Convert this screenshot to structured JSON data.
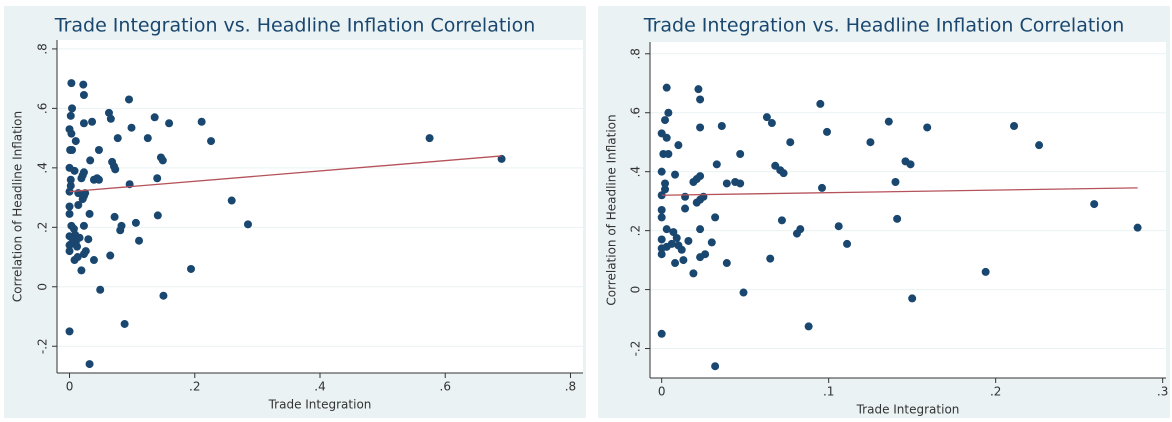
{
  "chart_data": [
    {
      "type": "scatter",
      "title": "Trade Integration vs. Headline Inflation Correlation",
      "x_label": "Trade Integration",
      "y_label": "Correlation of Headline Inflation",
      "color": "#1a476f",
      "fit_color": "#b5525a",
      "grid": true,
      "x": [
        0,
        0.003,
        0.004,
        0.002,
        0,
        0.003,
        0.001,
        0.004,
        0,
        0.002,
        0.002,
        0,
        0,
        0,
        0.003,
        0,
        0,
        0,
        0.003,
        0.006,
        0.007,
        0.009,
        0.008,
        0.01,
        0.008,
        0.01,
        0.012,
        0.013,
        0.014,
        0.014,
        0.016,
        0.019,
        0.021,
        0.023,
        0.022,
        0.023,
        0.023,
        0.021,
        0.023,
        0.025,
        0.023,
        0.023,
        0.026,
        0.019,
        0.03,
        0.032,
        0.033,
        0.036,
        0.039,
        0.039,
        0.047,
        0.044,
        0.047,
        0.049,
        0.032,
        0.063,
        0.066,
        0.068,
        0.071,
        0.073,
        0.077,
        0.072,
        0.065,
        0.081,
        0.083,
        0.088,
        0.095,
        0.099,
        0.096,
        0.106,
        0.111,
        0.125,
        0.136,
        0.14,
        0.141,
        0.146,
        0.149,
        0.15,
        0.159,
        0.194,
        0.211,
        0.226,
        0.259,
        0.285,
        0.575,
        0.69
      ],
      "y": [
        -0.15,
        0.685,
        0.6,
        0.575,
        0.53,
        0.515,
        0.46,
        0.46,
        0.4,
        0.36,
        0.34,
        0.32,
        0.27,
        0.245,
        0.205,
        0.17,
        0.14,
        0.12,
        0.145,
        0.155,
        0.195,
        0.175,
        0.09,
        0.49,
        0.39,
        0.15,
        0.135,
        0.1,
        0.315,
        0.275,
        0.165,
        0.365,
        0.375,
        0.385,
        0.68,
        0.645,
        0.55,
        0.295,
        0.305,
        0.315,
        0.205,
        0.11,
        0.12,
        0.055,
        0.16,
        0.245,
        0.425,
        0.555,
        0.36,
        0.09,
        0.46,
        0.365,
        0.36,
        -0.01,
        -0.26,
        0.585,
        0.565,
        0.42,
        0.405,
        0.395,
        0.5,
        0.235,
        0.105,
        0.19,
        0.205,
        -0.125,
        0.63,
        0.535,
        0.345,
        0.215,
        0.155,
        0.5,
        0.57,
        0.365,
        0.24,
        0.435,
        0.425,
        -0.03,
        0.55,
        0.06,
        0.555,
        0.49,
        0.29,
        0.21,
        0.5,
        0.43
      ],
      "fit": {
        "x": [
          0,
          0.69
        ],
        "y": [
          0.32,
          0.44
        ]
      },
      "xlim": [
        -0.02,
        0.82
      ],
      "ylim": [
        -0.29,
        0.83
      ],
      "xticks": [
        0,
        {
          "value": 0.2,
          "label": ".2"
        },
        {
          "value": 0.4,
          "label": ".4"
        },
        {
          "value": 0.6,
          "label": ".6"
        },
        {
          "value": 0.8,
          "label": ".8"
        }
      ],
      "yticks": [
        {
          "value": -0.2,
          "label": "-.2"
        },
        0,
        {
          "value": 0.2,
          "label": ".2"
        },
        {
          "value": 0.4,
          "label": ".4"
        },
        {
          "value": 0.6,
          "label": ".6"
        },
        {
          "value": 0.8,
          "label": ".8"
        }
      ]
    },
    {
      "type": "scatter",
      "title": "Trade Integration vs. Headline Inflation Correlation",
      "x_label": "Trade Integration",
      "y_label": "Correlation of Headline Inflation",
      "color": "#1a476f",
      "fit_color": "#b5525a",
      "grid": true,
      "x": [
        0,
        0.003,
        0.004,
        0.002,
        0,
        0.003,
        0.001,
        0.004,
        0,
        0.002,
        0.002,
        0,
        0,
        0,
        0.003,
        0,
        0,
        0,
        0.003,
        0.006,
        0.007,
        0.009,
        0.008,
        0.01,
        0.008,
        0.01,
        0.012,
        0.013,
        0.014,
        0.014,
        0.016,
        0.019,
        0.021,
        0.023,
        0.022,
        0.023,
        0.023,
        0.021,
        0.023,
        0.025,
        0.023,
        0.023,
        0.026,
        0.019,
        0.03,
        0.032,
        0.033,
        0.036,
        0.039,
        0.039,
        0.047,
        0.044,
        0.047,
        0.049,
        0.032,
        0.063,
        0.066,
        0.068,
        0.071,
        0.073,
        0.077,
        0.072,
        0.065,
        0.081,
        0.083,
        0.088,
        0.095,
        0.099,
        0.096,
        0.106,
        0.111,
        0.125,
        0.136,
        0.14,
        0.141,
        0.146,
        0.149,
        0.15,
        0.159,
        0.194,
        0.211,
        0.226,
        0.259,
        0.285
      ],
      "y": [
        -0.15,
        0.685,
        0.6,
        0.575,
        0.53,
        0.515,
        0.46,
        0.46,
        0.4,
        0.36,
        0.34,
        0.32,
        0.27,
        0.245,
        0.205,
        0.17,
        0.14,
        0.12,
        0.145,
        0.155,
        0.195,
        0.175,
        0.09,
        0.49,
        0.39,
        0.15,
        0.135,
        0.1,
        0.315,
        0.275,
        0.165,
        0.365,
        0.375,
        0.385,
        0.68,
        0.645,
        0.55,
        0.295,
        0.305,
        0.315,
        0.205,
        0.11,
        0.12,
        0.055,
        0.16,
        0.245,
        0.425,
        0.555,
        0.36,
        0.09,
        0.46,
        0.365,
        0.36,
        -0.01,
        -0.26,
        0.585,
        0.565,
        0.42,
        0.405,
        0.395,
        0.5,
        0.235,
        0.105,
        0.19,
        0.205,
        -0.125,
        0.63,
        0.535,
        0.345,
        0.215,
        0.155,
        0.5,
        0.57,
        0.365,
        0.24,
        0.435,
        0.425,
        -0.03,
        0.55,
        0.06,
        0.555,
        0.49,
        0.29,
        0.21
      ],
      "fit": {
        "x": [
          0,
          0.285
        ],
        "y": [
          0.32,
          0.345
        ]
      },
      "xlim": [
        -0.007,
        0.302
      ],
      "ylim": [
        -0.3,
        0.84
      ],
      "xticks": [
        0,
        {
          "value": 0.1,
          "label": ".1"
        },
        {
          "value": 0.2,
          "label": ".2"
        },
        {
          "value": 0.3,
          "label": ".3"
        }
      ],
      "yticks": [
        {
          "value": -0.2,
          "label": "-.2"
        },
        0,
        {
          "value": 0.2,
          "label": ".2"
        },
        {
          "value": 0.4,
          "label": ".4"
        },
        {
          "value": 0.6,
          "label": ".6"
        },
        {
          "value": 0.8,
          "label": ".8"
        }
      ]
    }
  ]
}
